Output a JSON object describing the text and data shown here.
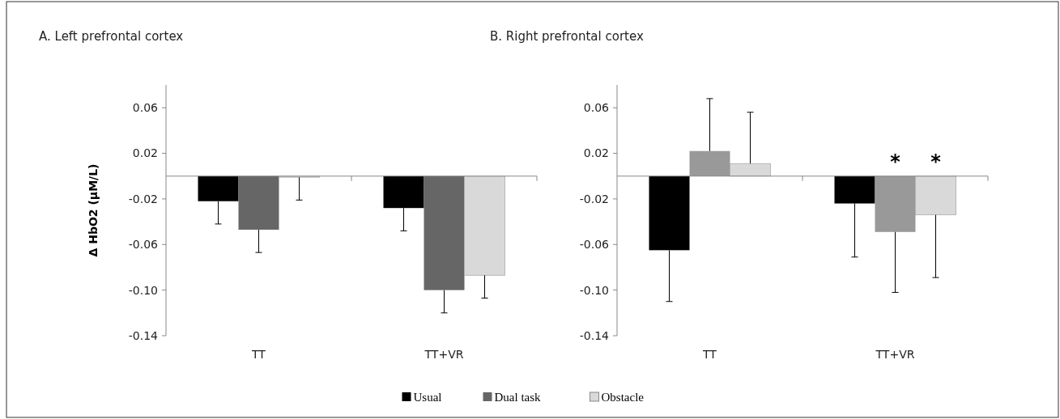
{
  "chart_data": [
    {
      "type": "bar",
      "title": "A. Left prefrontal cortex",
      "ylabel": "Δ HbO2 (µM/L)",
      "categories": [
        "TT",
        "TT+VR"
      ],
      "ylim": [
        -0.14,
        0.08
      ],
      "yticks": [
        0.06,
        0.02,
        -0.02,
        -0.06,
        {
          "value": -0.1,
          "label": "-0.10"
        },
        -0.14
      ],
      "legend": "bottom",
      "series": [
        {
          "name": "Usual",
          "color": "#000000",
          "values": [
            -0.022,
            -0.028
          ],
          "errors": [
            [
              -0.042,
              -0.022
            ],
            [
              -0.048,
              -0.028
            ]
          ]
        },
        {
          "name": "Dual task",
          "color": "#666666",
          "values": [
            -0.047,
            -0.1
          ],
          "errors": [
            [
              -0.067,
              -0.047
            ],
            [
              -0.12,
              -0.1
            ]
          ]
        },
        {
          "name": "Obstacle",
          "color": "#d9d9d9",
          "values": [
            -0.001,
            -0.087
          ],
          "errors": [
            [
              -0.021,
              -0.001
            ],
            [
              -0.107,
              -0.087
            ]
          ]
        }
      ]
    },
    {
      "type": "bar",
      "title": "B. Right prefrontal cortex",
      "categories": [
        "TT",
        "TT+VR"
      ],
      "ylim": [
        -0.14,
        0.08
      ],
      "yticks": [
        0.06,
        0.02,
        -0.02,
        -0.06,
        {
          "value": -0.1,
          "label": "-0.10"
        },
        -0.14
      ],
      "annotations": [
        "*",
        "*"
      ],
      "series": [
        {
          "color": "#000000",
          "values": [
            -0.065,
            -0.024
          ],
          "errors": [
            [
              -0.11,
              -0.065
            ],
            [
              -0.071,
              -0.024
            ]
          ]
        },
        {
          "color": "#999999",
          "values": [
            0.022,
            -0.049
          ],
          "errors": [
            [
              0.022,
              0.068
            ],
            [
              -0.102,
              -0.049
            ]
          ]
        },
        {
          "color": "#d9d9d9",
          "values": [
            0.011,
            -0.034
          ],
          "errors": [
            [
              0.011,
              0.056
            ],
            [
              -0.089,
              -0.034
            ]
          ]
        }
      ]
    }
  ]
}
